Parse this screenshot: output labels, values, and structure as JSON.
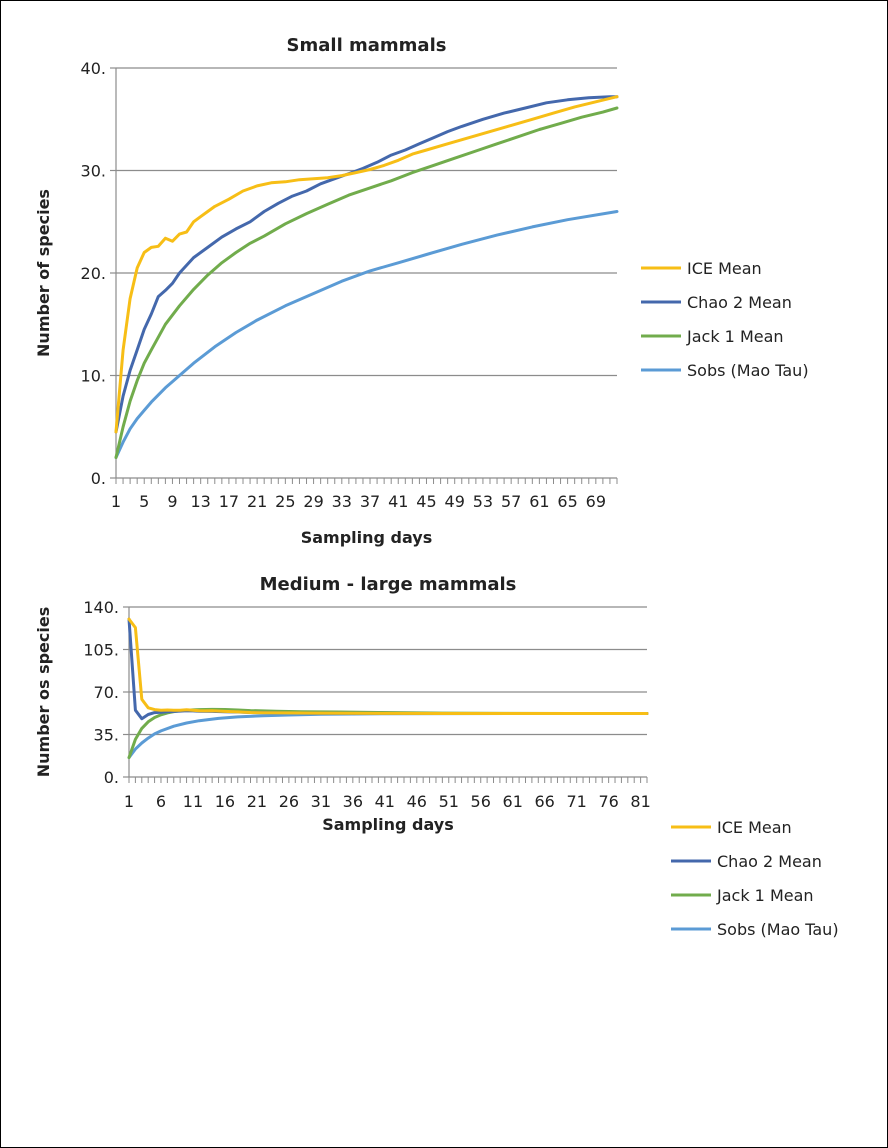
{
  "chart_data": [
    {
      "type": "line",
      "title": "Small mammals",
      "xlabel": "Sampling days",
      "ylabel": "Number of species",
      "ylim": [
        0,
        40
      ],
      "yticks": [
        0,
        10,
        20,
        30,
        40
      ],
      "ytick_labels": [
        "0.",
        "10.",
        "20.",
        "30.",
        "40."
      ],
      "xlim": [
        1,
        72
      ],
      "xtick_labels": [
        "1",
        "5",
        "9",
        "13",
        "17",
        "21",
        "25",
        "29",
        "33",
        "37",
        "41",
        "45",
        "49",
        "53",
        "57",
        "61",
        "65",
        "69"
      ],
      "grid": true,
      "legend": "right",
      "series": [
        {
          "name": "ICE Mean",
          "color": "#F7BE16",
          "x": [
            1,
            2,
            3,
            4,
            5,
            6,
            7,
            8,
            9,
            10,
            11,
            12,
            13,
            14,
            15,
            17,
            19,
            21,
            23,
            25,
            27,
            29,
            31,
            33,
            35,
            37,
            39,
            41,
            43,
            45,
            48,
            51,
            54,
            57,
            60,
            63,
            66,
            69,
            72
          ],
          "y": [
            4.5,
            12.5,
            17.5,
            20.5,
            22.0,
            22.5,
            22.6,
            23.4,
            23.1,
            23.8,
            24.0,
            25.0,
            25.5,
            26.0,
            26.5,
            27.2,
            28.0,
            28.5,
            28.8,
            28.9,
            29.1,
            29.2,
            29.3,
            29.5,
            29.8,
            30.1,
            30.5,
            31.0,
            31.6,
            32.0,
            32.6,
            33.2,
            33.8,
            34.4,
            35.0,
            35.6,
            36.2,
            36.7,
            37.2
          ]
        },
        {
          "name": "Chao 2 Mean",
          "color": "#4468AC",
          "x": [
            1,
            2,
            3,
            4,
            5,
            6,
            7,
            8,
            9,
            10,
            12,
            14,
            16,
            18,
            20,
            22,
            24,
            26,
            28,
            30,
            32,
            34,
            36,
            38,
            40,
            42,
            44,
            46,
            48,
            50,
            53,
            56,
            59,
            62,
            65,
            68,
            71,
            72
          ],
          "y": [
            4.5,
            8.0,
            10.5,
            12.5,
            14.5,
            16.0,
            17.7,
            18.3,
            19.0,
            20.0,
            21.5,
            22.5,
            23.5,
            24.3,
            25.0,
            26.0,
            26.8,
            27.5,
            28.0,
            28.7,
            29.2,
            29.7,
            30.2,
            30.8,
            31.5,
            32.0,
            32.6,
            33.2,
            33.8,
            34.3,
            35.0,
            35.6,
            36.1,
            36.6,
            36.9,
            37.1,
            37.2,
            37.2
          ]
        },
        {
          "name": "Jack 1 Mean",
          "color": "#71AC4C",
          "x": [
            1,
            2,
            3,
            4,
            5,
            6,
            8,
            10,
            12,
            14,
            16,
            18,
            20,
            22,
            25,
            28,
            31,
            34,
            37,
            40,
            43,
            46,
            49,
            52,
            55,
            58,
            61,
            64,
            67,
            70,
            72
          ],
          "y": [
            2.0,
            5.0,
            7.5,
            9.5,
            11.2,
            12.5,
            15.0,
            16.8,
            18.4,
            19.8,
            21.0,
            22.0,
            22.9,
            23.6,
            24.8,
            25.8,
            26.7,
            27.6,
            28.3,
            29.0,
            29.8,
            30.5,
            31.2,
            31.9,
            32.6,
            33.3,
            34.0,
            34.6,
            35.2,
            35.7,
            36.1
          ]
        },
        {
          "name": "Sobs (Mao Tau)",
          "color": "#5B9BD5",
          "x": [
            1,
            2,
            3,
            4,
            5,
            6,
            8,
            10,
            12,
            15,
            18,
            21,
            25,
            29,
            33,
            37,
            41,
            45,
            50,
            55,
            60,
            65,
            72
          ],
          "y": [
            2.0,
            3.5,
            4.8,
            5.8,
            6.6,
            7.4,
            8.8,
            10.0,
            11.2,
            12.8,
            14.2,
            15.4,
            16.8,
            18.0,
            19.2,
            20.2,
            21.0,
            21.8,
            22.8,
            23.7,
            24.5,
            25.2,
            26.0
          ]
        }
      ]
    },
    {
      "type": "line",
      "title": "Medium - large mammals",
      "xlabel": "Sampling days",
      "ylabel": "Number os species",
      "ylim": [
        0,
        140
      ],
      "yticks": [
        0,
        35,
        70,
        105,
        140
      ],
      "ytick_labels": [
        "0.",
        "35.",
        "70.",
        "105.",
        "140."
      ],
      "xlim": [
        1,
        82
      ],
      "xtick_labels": [
        "1",
        "6",
        "11",
        "16",
        "21",
        "26",
        "31",
        "36",
        "41",
        "46",
        "51",
        "56",
        "61",
        "66",
        "71",
        "76",
        "81"
      ],
      "grid": true,
      "legend": "right",
      "series": [
        {
          "name": "ICE Mean",
          "color": "#F7BE16",
          "x": [
            1,
            2,
            3,
            4,
            5,
            6,
            7,
            8,
            9,
            10,
            11,
            12,
            13,
            14,
            16,
            18,
            20,
            22,
            25,
            30,
            40,
            50,
            60,
            70,
            82
          ],
          "y": [
            130,
            123,
            64,
            57,
            55.5,
            55.0,
            55.2,
            55.0,
            55.0,
            55.4,
            55.0,
            54.6,
            54.4,
            54.6,
            54.0,
            53.6,
            53.1,
            52.9,
            52.8,
            52.6,
            52.4,
            52.3,
            52.3,
            52.3,
            52.3
          ]
        },
        {
          "name": "Chao 2 Mean",
          "color": "#4468AC",
          "x": [
            1,
            2,
            3,
            4,
            5,
            6,
            7,
            8,
            9,
            10,
            11,
            12,
            14,
            16,
            18,
            20,
            23,
            26,
            30,
            40,
            50,
            60,
            70,
            82
          ],
          "y": [
            130,
            55,
            48,
            51.5,
            53.0,
            53.4,
            53.8,
            54.0,
            54.3,
            54.5,
            54.4,
            54.2,
            54.0,
            53.8,
            53.5,
            53.1,
            52.9,
            52.7,
            52.5,
            52.4,
            52.3,
            52.3,
            52.3,
            52.3
          ]
        },
        {
          "name": "Jack 1 Mean",
          "color": "#71AC4C",
          "x": [
            1,
            2,
            3,
            4,
            5,
            6,
            7,
            8,
            9,
            10,
            11,
            12,
            14,
            16,
            18,
            20,
            24,
            28,
            34,
            40,
            50,
            60,
            70,
            82
          ],
          "y": [
            16,
            31,
            40,
            45.5,
            49.0,
            51.2,
            52.8,
            53.8,
            54.5,
            55.0,
            55.3,
            55.5,
            55.7,
            55.6,
            55.2,
            54.7,
            54.2,
            53.8,
            53.5,
            53.1,
            52.6,
            52.4,
            52.3,
            52.3
          ]
        },
        {
          "name": "Sobs (Mao Tau)",
          "color": "#5B9BD5",
          "x": [
            1,
            2,
            3,
            4,
            5,
            6,
            8,
            10,
            12,
            15,
            18,
            22,
            26,
            31,
            36,
            41,
            51,
            61,
            71,
            82
          ],
          "y": [
            16,
            23,
            28,
            32,
            35.5,
            38.0,
            41.8,
            44.5,
            46.4,
            48.3,
            49.5,
            50.5,
            51.1,
            51.6,
            51.9,
            52.1,
            52.2,
            52.3,
            52.3,
            52.3
          ]
        }
      ]
    }
  ]
}
